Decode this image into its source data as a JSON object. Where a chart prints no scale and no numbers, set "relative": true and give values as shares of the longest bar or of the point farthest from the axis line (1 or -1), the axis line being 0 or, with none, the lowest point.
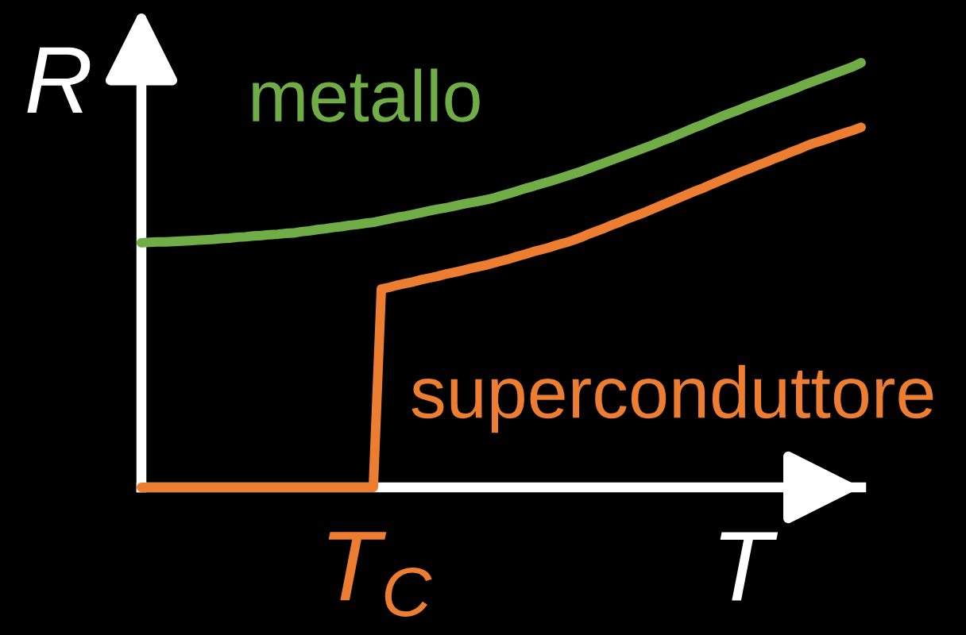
{
  "chart_data": {
    "type": "line",
    "relative": true,
    "xlabel": "T",
    "ylabel": "R",
    "line_style": "solid",
    "annotations": [
      "T$_{C}$"
    ],
    "categories": [
      null,
      null,
      null,
      null,
      null,
      null,
      null,
      null,
      null,
      null,
      null,
      null,
      null,
      null,
      null,
      null,
      null,
      null,
      null,
      null,
      null,
      null,
      null,
      null,
      null,
      null,
      null,
      null,
      null,
      null,
      null,
      null,
      null,
      null,
      null,
      null,
      null,
      null,
      null,
      null,
      null,
      null,
      null,
      null,
      null,
      null,
      null,
      null,
      null,
      null,
      null,
      null,
      null,
      null,
      null,
      null,
      null,
      null,
      null,
      null,
      null,
      null,
      null,
      null,
      null,
      null,
      null,
      null,
      null,
      null,
      null,
      null,
      null,
      null,
      null,
      null,
      null,
      null,
      null,
      null,
      null,
      null,
      null,
      null,
      null,
      null,
      null,
      null,
      null,
      null,
      null
    ],
    "series": [
      {
        "name": "metallo",
        "color": "#70ad47",
        "values": [
          0.576,
          0.577,
          0.578,
          0.578,
          0.579,
          0.58,
          0.581,
          0.582,
          0.583,
          0.584,
          0.586,
          0.587,
          0.589,
          0.59,
          0.592,
          0.593,
          0.595,
          0.596,
          0.598,
          0.599,
          0.602,
          0.604,
          0.607,
          0.609,
          0.612,
          0.614,
          0.617,
          0.619,
          0.622,
          0.624,
          0.628,
          0.632,
          0.636,
          0.639,
          0.643,
          0.647,
          0.651,
          0.655,
          0.658,
          0.662,
          0.666,
          0.67,
          0.673,
          0.677,
          0.681,
          0.687,
          0.692,
          0.698,
          0.704,
          0.709,
          0.715,
          0.72,
          0.726,
          0.732,
          0.738,
          0.744,
          0.751,
          0.758,
          0.765,
          0.772,
          0.779,
          0.786,
          0.793,
          0.8,
          0.807,
          0.815,
          0.822,
          0.83,
          0.838,
          0.846,
          0.853,
          0.861,
          0.869,
          0.877,
          0.884,
          0.891,
          0.899,
          0.906,
          0.913,
          0.92,
          0.927,
          0.934,
          0.941,
          0.949,
          0.956,
          0.963,
          0.97,
          0.977,
          0.984,
          0.991,
          1.0
        ]
      },
      {
        "name": "superconduttore",
        "color": "#ed7d31",
        "values": [
          0,
          0,
          0,
          0,
          0,
          0,
          0,
          0,
          0,
          0,
          0,
          0,
          0,
          0,
          0,
          0,
          0,
          0,
          0,
          0,
          0,
          0,
          0,
          0,
          0,
          0,
          0,
          0,
          0,
          0,
          0.467,
          0.471,
          0.476,
          0.48,
          0.484,
          0.489,
          0.493,
          0.497,
          0.502,
          0.506,
          0.51,
          0.515,
          0.519,
          0.523,
          0.528,
          0.533,
          0.538,
          0.544,
          0.549,
          0.555,
          0.56,
          0.565,
          0.571,
          0.576,
          0.582,
          0.589,
          0.597,
          0.604,
          0.611,
          0.619,
          0.626,
          0.634,
          0.641,
          0.648,
          0.656,
          0.664,
          0.672,
          0.68,
          0.688,
          0.696,
          0.703,
          0.711,
          0.719,
          0.727,
          0.735,
          0.743,
          0.75,
          0.758,
          0.765,
          0.773,
          0.78,
          0.788,
          0.795,
          0.803,
          0.81,
          0.816,
          0.822,
          0.829,
          0.835,
          0.841,
          0.848
        ]
      }
    ]
  }
}
